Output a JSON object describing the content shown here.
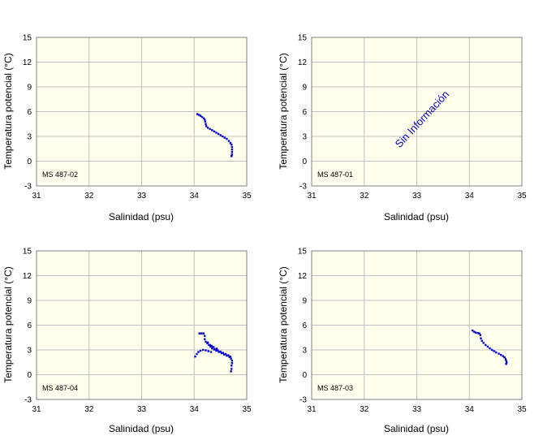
{
  "colors": {
    "plot_bg": "#ffffee",
    "grid": "#c0c0c0",
    "points": "#0000d0",
    "no_info_text": "#0000c0"
  },
  "chart_data": [
    {
      "type": "scatter",
      "station_label": "MS 487-02",
      "xlabel": "Salinidad (psu)",
      "ylabel": "Temperatura potencial (°C)",
      "xlim": [
        31,
        35
      ],
      "ylim": [
        -3,
        15
      ],
      "x_ticks": [
        31,
        32,
        33,
        34,
        35
      ],
      "y_ticks": [
        -3,
        0,
        3,
        6,
        9,
        12,
        15
      ],
      "no_data_text": null,
      "points": [
        [
          34.06,
          5.7
        ],
        [
          34.09,
          5.6
        ],
        [
          34.12,
          5.5
        ],
        [
          34.15,
          5.35
        ],
        [
          34.18,
          5.2
        ],
        [
          34.2,
          5.05
        ],
        [
          34.21,
          4.8
        ],
        [
          34.22,
          4.5
        ],
        [
          34.23,
          4.25
        ],
        [
          34.26,
          4.05
        ],
        [
          34.3,
          3.9
        ],
        [
          34.34,
          3.75
        ],
        [
          34.38,
          3.6
        ],
        [
          34.42,
          3.45
        ],
        [
          34.46,
          3.3
        ],
        [
          34.5,
          3.15
        ],
        [
          34.54,
          3.0
        ],
        [
          34.58,
          2.85
        ],
        [
          34.62,
          2.7
        ],
        [
          34.66,
          2.45
        ],
        [
          34.69,
          2.2
        ],
        [
          34.71,
          2.0
        ],
        [
          34.72,
          1.7
        ],
        [
          34.72,
          1.4
        ],
        [
          34.72,
          1.1
        ],
        [
          34.72,
          0.8
        ],
        [
          34.71,
          0.6
        ]
      ]
    },
    {
      "type": "scatter",
      "station_label": "MS 487-01",
      "xlabel": "Salinidad (psu)",
      "ylabel": "Temperatura potencial (°C)",
      "xlim": [
        31,
        35
      ],
      "ylim": [
        -3,
        15
      ],
      "x_ticks": [
        31,
        32,
        33,
        34,
        35
      ],
      "y_ticks": [
        -3,
        0,
        3,
        6,
        9,
        12,
        15
      ],
      "no_data_text": "Sin Información",
      "points": []
    },
    {
      "type": "scatter",
      "station_label": "MS 487-04",
      "xlabel": "Salinidad (psu)",
      "ylabel": "Temperatura potencial (°C)",
      "xlim": [
        31,
        35
      ],
      "ylim": [
        -3,
        15
      ],
      "x_ticks": [
        31,
        32,
        33,
        34,
        35
      ],
      "y_ticks": [
        -3,
        0,
        3,
        6,
        9,
        12,
        15
      ],
      "no_data_text": null,
      "points": [
        [
          34.1,
          5.0
        ],
        [
          34.14,
          5.0
        ],
        [
          34.18,
          5.0
        ],
        [
          34.2,
          4.7
        ],
        [
          34.2,
          4.3
        ],
        [
          34.22,
          4.0
        ],
        [
          34.25,
          3.8
        ],
        [
          34.28,
          3.6
        ],
        [
          34.31,
          3.4
        ],
        [
          34.34,
          3.2
        ],
        [
          34.38,
          3.05
        ],
        [
          34.42,
          2.9
        ],
        [
          34.47,
          2.75
        ],
        [
          34.52,
          2.6
        ],
        [
          34.57,
          2.45
        ],
        [
          34.62,
          2.3
        ],
        [
          34.67,
          2.15
        ],
        [
          34.7,
          1.95
        ],
        [
          34.72,
          1.7
        ],
        [
          34.72,
          1.4
        ],
        [
          34.71,
          1.1
        ],
        [
          34.71,
          0.7
        ],
        [
          34.7,
          0.4
        ],
        [
          34.02,
          2.2
        ],
        [
          34.05,
          2.5
        ],
        [
          34.08,
          2.75
        ],
        [
          34.12,
          2.9
        ],
        [
          34.17,
          3.0
        ],
        [
          34.22,
          2.95
        ],
        [
          34.27,
          2.85
        ],
        [
          34.32,
          2.75
        ],
        [
          34.3,
          3.6
        ],
        [
          34.35,
          3.3
        ],
        [
          34.4,
          3.1
        ],
        [
          34.45,
          2.95
        ],
        [
          34.5,
          2.8
        ],
        [
          34.55,
          2.65
        ],
        [
          34.6,
          2.5
        ],
        [
          34.65,
          2.35
        ],
        [
          34.69,
          2.2
        ],
        [
          34.26,
          3.9
        ],
        [
          34.33,
          3.5
        ],
        [
          34.37,
          3.35
        ],
        [
          34.43,
          3.15
        ]
      ]
    },
    {
      "type": "scatter",
      "station_label": "MS 487-03",
      "xlabel": "Salinidad (psu)",
      "ylabel": "Temperatura potencial (°C)",
      "xlim": [
        31,
        35
      ],
      "ylim": [
        -3,
        15
      ],
      "x_ticks": [
        31,
        32,
        33,
        34,
        35
      ],
      "y_ticks": [
        -3,
        0,
        3,
        6,
        9,
        12,
        15
      ],
      "no_data_text": null,
      "points": [
        [
          34.06,
          5.35
        ],
        [
          34.09,
          5.2
        ],
        [
          34.12,
          5.1
        ],
        [
          34.16,
          5.05
        ],
        [
          34.19,
          5.0
        ],
        [
          34.21,
          4.8
        ],
        [
          34.22,
          4.4
        ],
        [
          34.24,
          4.1
        ],
        [
          34.27,
          3.85
        ],
        [
          34.31,
          3.6
        ],
        [
          34.35,
          3.4
        ],
        [
          34.39,
          3.2
        ],
        [
          34.43,
          3.0
        ],
        [
          34.47,
          2.85
        ],
        [
          34.51,
          2.7
        ],
        [
          34.56,
          2.55
        ],
        [
          34.6,
          2.4
        ],
        [
          34.64,
          2.25
        ],
        [
          34.67,
          2.1
        ],
        [
          34.69,
          1.9
        ],
        [
          34.7,
          1.7
        ],
        [
          34.71,
          1.5
        ],
        [
          34.7,
          1.3
        ]
      ]
    }
  ]
}
